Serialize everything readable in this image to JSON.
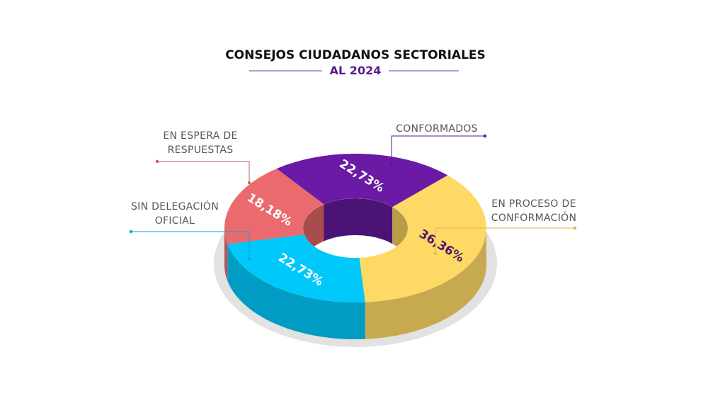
{
  "chart_data": {
    "type": "pie",
    "donut": true,
    "title": "CONSEJOS CIUDADANOS SECTORIALES",
    "subtitle": "AL 2024",
    "categories": [
      "CONFORMADOS",
      "EN PROCESO DE CONFORMACIÓN",
      "SIN DELEGACIÓN OFICIAL",
      "EN ESPERA DE RESPUESTAS"
    ],
    "values": [
      22.73,
      36.36,
      22.73,
      18.18
    ],
    "value_labels": [
      "22,73%",
      "36,36%",
      "22,73%",
      "18,18%"
    ],
    "colors": [
      "#6a1aa5",
      "#ffd966",
      "#00c8fa",
      "#ea6a6d"
    ]
  }
}
